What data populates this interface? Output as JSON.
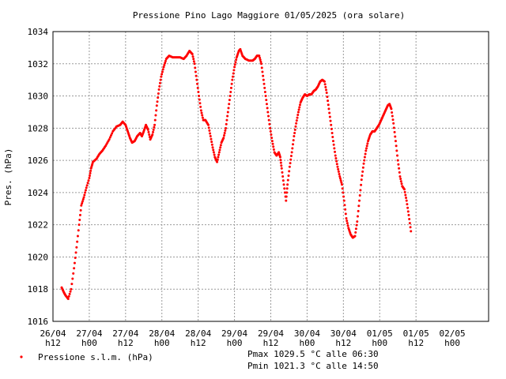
{
  "chart_data": {
    "type": "line",
    "title": "Pressione Pino Lago Maggiore 01/05/2025 (ora solare)",
    "ylabel": "Pres. (hPa)",
    "xlabel": "",
    "ylim": [
      1016,
      1034
    ],
    "xlim": [
      0,
      12
    ],
    "yticks": [
      "1016",
      "1018",
      "1020",
      "1022",
      "1024",
      "1026",
      "1028",
      "1030",
      "1032",
      "1034"
    ],
    "xticks": [
      {
        "date": "26/04",
        "time": "h12"
      },
      {
        "date": "27/04",
        "time": "h00"
      },
      {
        "date": "27/04",
        "time": "h12"
      },
      {
        "date": "28/04",
        "time": "h00"
      },
      {
        "date": "28/04",
        "time": "h12"
      },
      {
        "date": "29/04",
        "time": "h00"
      },
      {
        "date": "29/04",
        "time": "h12"
      },
      {
        "date": "30/04",
        "time": "h00"
      },
      {
        "date": "30/04",
        "time": "h12"
      },
      {
        "date": "01/05",
        "time": "h00"
      },
      {
        "date": "01/05",
        "time": "h12"
      },
      {
        "date": "02/05",
        "time": "h00"
      }
    ],
    "grid": true,
    "legend": "bottom-left",
    "series": [
      {
        "name": "Pressione s.l.m. (hPa)",
        "color": "#ff0000",
        "points": [
          [
            0.24,
            1018.1
          ],
          [
            0.3,
            1017.8
          ],
          [
            0.35,
            1017.6
          ],
          [
            0.42,
            1017.4
          ],
          [
            0.5,
            1018.0
          ],
          [
            0.58,
            1019.3
          ],
          [
            0.65,
            1020.6
          ],
          [
            0.72,
            1022.0
          ],
          [
            0.78,
            1023.2
          ],
          [
            0.85,
            1023.7
          ],
          [
            0.92,
            1024.3
          ],
          [
            1.0,
            1024.9
          ],
          [
            1.05,
            1025.5
          ],
          [
            1.1,
            1025.9
          ],
          [
            1.2,
            1026.1
          ],
          [
            1.28,
            1026.4
          ],
          [
            1.36,
            1026.6
          ],
          [
            1.45,
            1026.9
          ],
          [
            1.55,
            1027.3
          ],
          [
            1.65,
            1027.8
          ],
          [
            1.75,
            1028.1
          ],
          [
            1.85,
            1028.2
          ],
          [
            1.92,
            1028.4
          ],
          [
            2.0,
            1028.2
          ],
          [
            2.06,
            1027.8
          ],
          [
            2.12,
            1027.4
          ],
          [
            2.18,
            1027.1
          ],
          [
            2.25,
            1027.2
          ],
          [
            2.32,
            1027.5
          ],
          [
            2.4,
            1027.7
          ],
          [
            2.45,
            1027.5
          ],
          [
            2.5,
            1027.8
          ],
          [
            2.56,
            1028.2
          ],
          [
            2.62,
            1027.9
          ],
          [
            2.68,
            1027.3
          ],
          [
            2.74,
            1027.6
          ],
          [
            2.8,
            1028.2
          ],
          [
            2.86,
            1029.4
          ],
          [
            2.92,
            1030.4
          ],
          [
            2.98,
            1031.2
          ],
          [
            3.05,
            1031.8
          ],
          [
            3.12,
            1032.3
          ],
          [
            3.2,
            1032.5
          ],
          [
            3.3,
            1032.4
          ],
          [
            3.4,
            1032.4
          ],
          [
            3.5,
            1032.4
          ],
          [
            3.6,
            1032.3
          ],
          [
            3.68,
            1032.5
          ],
          [
            3.76,
            1032.8
          ],
          [
            3.84,
            1032.6
          ],
          [
            3.9,
            1032.0
          ],
          [
            3.96,
            1031.0
          ],
          [
            4.02,
            1030.0
          ],
          [
            4.08,
            1029.1
          ],
          [
            4.14,
            1028.5
          ],
          [
            4.2,
            1028.5
          ],
          [
            4.28,
            1028.2
          ],
          [
            4.34,
            1027.5
          ],
          [
            4.4,
            1026.8
          ],
          [
            4.46,
            1026.2
          ],
          [
            4.52,
            1025.9
          ],
          [
            4.58,
            1026.5
          ],
          [
            4.64,
            1027.1
          ],
          [
            4.7,
            1027.4
          ],
          [
            4.76,
            1028.0
          ],
          [
            4.82,
            1029.0
          ],
          [
            4.88,
            1030.0
          ],
          [
            4.94,
            1031.0
          ],
          [
            5.0,
            1031.8
          ],
          [
            5.06,
            1032.4
          ],
          [
            5.12,
            1032.8
          ],
          [
            5.16,
            1032.9
          ],
          [
            5.22,
            1032.5
          ],
          [
            5.3,
            1032.3
          ],
          [
            5.4,
            1032.2
          ],
          [
            5.5,
            1032.2
          ],
          [
            5.56,
            1032.3
          ],
          [
            5.62,
            1032.5
          ],
          [
            5.68,
            1032.5
          ],
          [
            5.74,
            1032.0
          ],
          [
            5.8,
            1031.0
          ],
          [
            5.86,
            1030.0
          ],
          [
            5.92,
            1029.0
          ],
          [
            5.98,
            1028.0
          ],
          [
            6.04,
            1027.2
          ],
          [
            6.1,
            1026.5
          ],
          [
            6.16,
            1026.3
          ],
          [
            6.22,
            1026.5
          ],
          [
            6.26,
            1026.2
          ],
          [
            6.3,
            1025.5
          ],
          [
            6.36,
            1024.5
          ],
          [
            6.42,
            1023.5
          ],
          [
            6.46,
            1024.5
          ],
          [
            6.52,
            1025.6
          ],
          [
            6.58,
            1026.5
          ],
          [
            6.64,
            1027.5
          ],
          [
            6.7,
            1028.3
          ],
          [
            6.76,
            1029.0
          ],
          [
            6.82,
            1029.6
          ],
          [
            6.88,
            1029.9
          ],
          [
            6.94,
            1030.1
          ],
          [
            7.0,
            1030.0
          ],
          [
            7.06,
            1030.1
          ],
          [
            7.12,
            1030.1
          ],
          [
            7.18,
            1030.3
          ],
          [
            7.24,
            1030.4
          ],
          [
            7.3,
            1030.6
          ],
          [
            7.36,
            1030.9
          ],
          [
            7.42,
            1031.0
          ],
          [
            7.48,
            1030.9
          ],
          [
            7.54,
            1030.2
          ],
          [
            7.6,
            1029.2
          ],
          [
            7.66,
            1028.2
          ],
          [
            7.72,
            1027.2
          ],
          [
            7.78,
            1026.3
          ],
          [
            7.84,
            1025.6
          ],
          [
            7.9,
            1025.0
          ],
          [
            7.96,
            1024.5
          ],
          [
            8.02,
            1023.5
          ],
          [
            8.08,
            1022.4
          ],
          [
            8.14,
            1021.8
          ],
          [
            8.2,
            1021.4
          ],
          [
            8.26,
            1021.2
          ],
          [
            8.32,
            1021.3
          ],
          [
            8.38,
            1022.2
          ],
          [
            8.44,
            1023.5
          ],
          [
            8.5,
            1024.8
          ],
          [
            8.56,
            1025.8
          ],
          [
            8.62,
            1026.6
          ],
          [
            8.68,
            1027.2
          ],
          [
            8.74,
            1027.6
          ],
          [
            8.8,
            1027.8
          ],
          [
            8.86,
            1027.8
          ],
          [
            8.92,
            1028.0
          ],
          [
            8.98,
            1028.2
          ],
          [
            9.04,
            1028.5
          ],
          [
            9.1,
            1028.8
          ],
          [
            9.16,
            1029.1
          ],
          [
            9.22,
            1029.4
          ],
          [
            9.27,
            1029.5
          ],
          [
            9.32,
            1029.2
          ],
          [
            9.38,
            1028.3
          ],
          [
            9.44,
            1027.2
          ],
          [
            9.5,
            1026.0
          ],
          [
            9.56,
            1025.0
          ],
          [
            9.62,
            1024.4
          ],
          [
            9.68,
            1024.2
          ],
          [
            9.74,
            1023.5
          ],
          [
            9.8,
            1022.6
          ],
          [
            9.86,
            1021.6
          ]
        ]
      }
    ],
    "stats": {
      "pmax": "Pmax 1029.5 °C alle 06:30",
      "pmin": "Pmin 1021.3 °C alle 14:50"
    }
  }
}
